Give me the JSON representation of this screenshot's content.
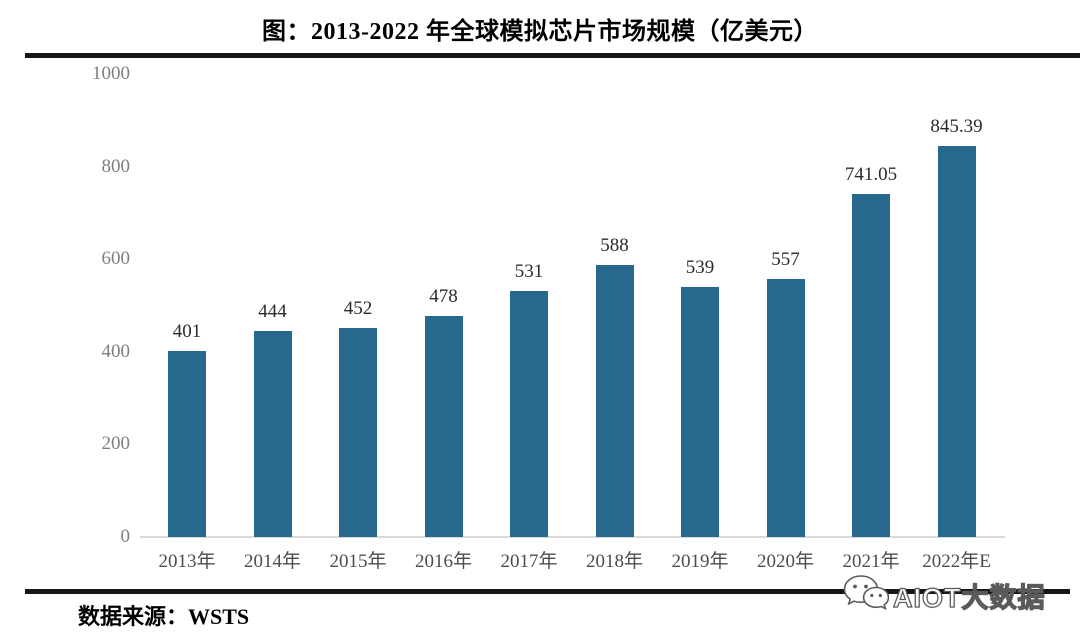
{
  "header": {
    "title": "图：2013-2022 年全球模拟芯片市场规模（亿美元）"
  },
  "chart_data": {
    "type": "bar",
    "title": "图：2013-2022 年全球模拟芯片市场规模（亿美元）",
    "categories": [
      "2013年",
      "2014年",
      "2015年",
      "2016年",
      "2017年",
      "2018年",
      "2019年",
      "2020年",
      "2021年",
      "2022年E"
    ],
    "values": [
      401,
      444,
      452,
      478,
      531,
      588,
      539,
      557,
      741.05,
      845.39
    ],
    "value_labels": [
      "401",
      "444",
      "452",
      "478",
      "531",
      "588",
      "539",
      "557",
      "741.05",
      "845.39"
    ],
    "xlabel": "",
    "ylabel": "",
    "unit": "亿美元",
    "ylim": [
      0,
      1000
    ],
    "y_ticks": [
      0,
      200,
      400,
      600,
      800,
      1000
    ],
    "grid": false,
    "legend": "none",
    "bar_color": "#27698d"
  },
  "footer": {
    "source_text": "数据来源：WSTS"
  },
  "watermark": {
    "text": "AIOT大数据",
    "icon": "wechat-icon"
  }
}
